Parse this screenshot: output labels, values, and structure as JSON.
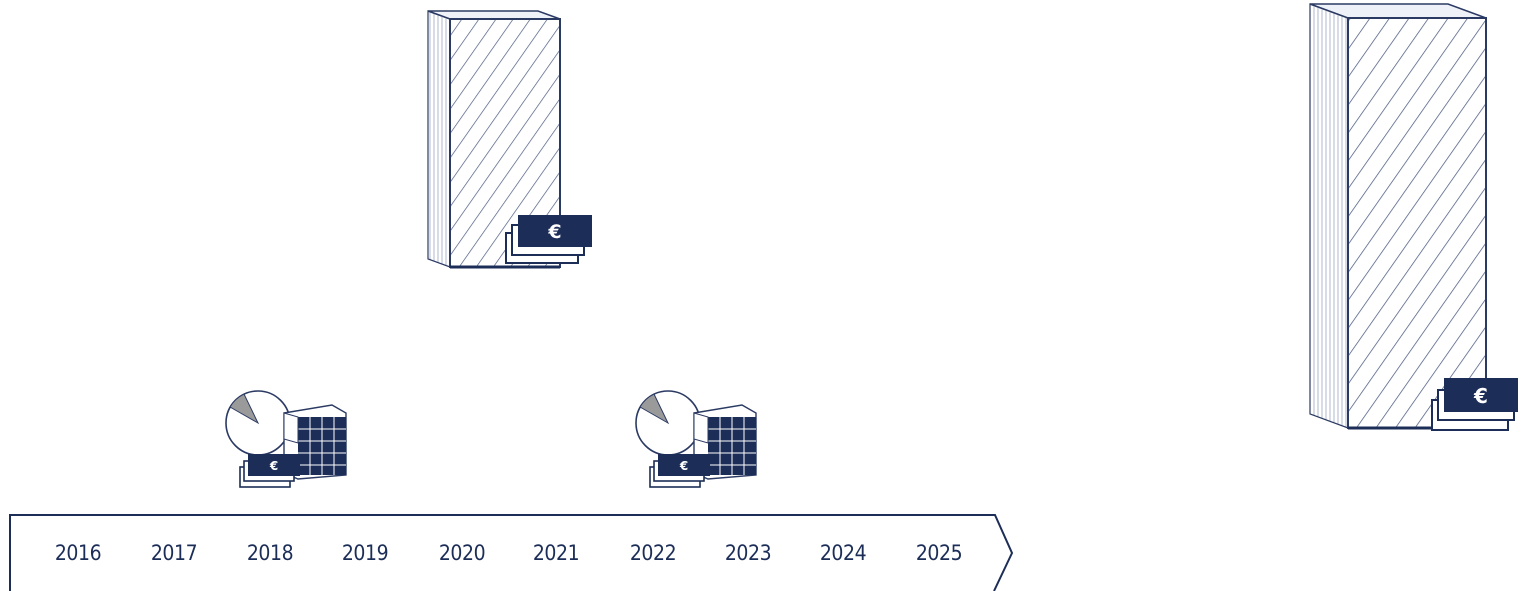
{
  "timeline": {
    "years": [
      "2016",
      "2017",
      "2018",
      "2019",
      "2020",
      "2021",
      "2022",
      "2023",
      "2024",
      "2025"
    ]
  },
  "icons": {
    "currency_symbol": "€",
    "milestone_icon": "pie-chart-calendar-money-icon",
    "block_icon": "hatched-building-block-icon"
  },
  "colors": {
    "navy": "#1c2d57",
    "outline": "#2b3a63",
    "hatch": "#4a5a80",
    "pie_gray": "#9a9a9a"
  }
}
